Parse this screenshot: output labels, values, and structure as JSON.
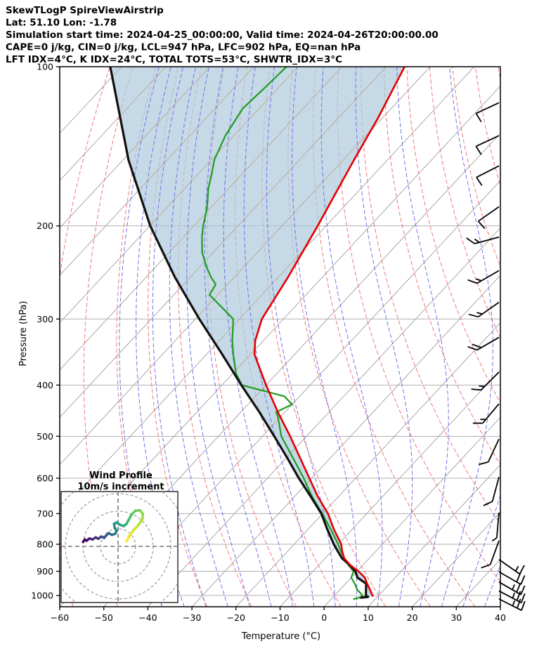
{
  "header": {
    "title": "SkewTLogP SpireViewAirstrip",
    "location_line": "Lat: 51.10   Lon: -1.78",
    "time_line": "Simulation start time: 2024-04-25_00:00:00, Valid time: 2024-04-26T20:00:00.00",
    "indices_line1": "CAPE=0 j/kg, CIN=0 j/kg, LCL=947 hPa, LFC=902 hPa, EQ=nan hPa",
    "indices_line2": "LFT IDX=4°C, K IDX=24°C, TOTAL TOTS=53°C, SHWTR_IDX=3°C"
  },
  "chart_data": {
    "type": "skewt-logp",
    "xlabel": "Temperature (°C)",
    "ylabel": "Pressure (hPa)",
    "xlim": [
      -60,
      40
    ],
    "x_ticks": [
      -60,
      -50,
      -40,
      -30,
      -20,
      -10,
      0,
      10,
      20,
      30,
      40
    ],
    "p_ticks": [
      100,
      200,
      300,
      400,
      500,
      600,
      700,
      800,
      900,
      1000
    ],
    "plim": [
      100,
      1050
    ],
    "grid": {
      "isotherm_step_c": 10,
      "isotherm_range_c": [
        -160,
        40
      ],
      "dry_adiabat_theta_c": [
        -60,
        150
      ],
      "dry_adiabat_step_c": 10,
      "moist_adiabat_thetaw_c": [
        -40,
        45
      ],
      "moist_adiabat_step_c": 5
    },
    "temperature_profile": [
      [
        1003,
        9.0
      ],
      [
        1000,
        8.6
      ],
      [
        975,
        6.8
      ],
      [
        950,
        4.9
      ],
      [
        925,
        3.1
      ],
      [
        900,
        0.3
      ],
      [
        875,
        -3.0
      ],
      [
        850,
        -5.7
      ],
      [
        825,
        -7.6
      ],
      [
        800,
        -9.3
      ],
      [
        750,
        -14.1
      ],
      [
        700,
        -18.8
      ],
      [
        650,
        -24.7
      ],
      [
        600,
        -30.5
      ],
      [
        550,
        -36.8
      ],
      [
        500,
        -43.7
      ],
      [
        450,
        -51.6
      ],
      [
        400,
        -60.0
      ],
      [
        350,
        -69.1
      ],
      [
        330,
        -71.8
      ],
      [
        300,
        -74.9
      ],
      [
        250,
        -77.8
      ],
      [
        200,
        -81.9
      ],
      [
        150,
        -87.6
      ],
      [
        125,
        -91.0
      ],
      [
        100,
        -95.8
      ]
    ],
    "dewpoint_profile": [
      [
        1016,
        5.0
      ],
      [
        1010,
        6.0
      ],
      [
        1000,
        6.4
      ],
      [
        975,
        3.9
      ],
      [
        950,
        2.1
      ],
      [
        925,
        0.0
      ],
      [
        900,
        -0.8
      ],
      [
        875,
        -3.4
      ],
      [
        850,
        -5.7
      ],
      [
        825,
        -7.9
      ],
      [
        800,
        -10.0
      ],
      [
        750,
        -14.8
      ],
      [
        700,
        -20.1
      ],
      [
        650,
        -26.0
      ],
      [
        600,
        -31.8
      ],
      [
        550,
        -38.4
      ],
      [
        500,
        -45.7
      ],
      [
        460,
        -50.5
      ],
      [
        450,
        -52.0
      ],
      [
        435,
        -50.0
      ],
      [
        420,
        -53.5
      ],
      [
        400,
        -65.5
      ],
      [
        380,
        -69.3
      ],
      [
        350,
        -73.9
      ],
      [
        330,
        -77.0
      ],
      [
        300,
        -81.4
      ],
      [
        285,
        -86.5
      ],
      [
        270,
        -91.9
      ],
      [
        258,
        -92.7
      ],
      [
        250,
        -95.3
      ],
      [
        240,
        -98.2
      ],
      [
        225,
        -102.4
      ],
      [
        210,
        -105.8
      ],
      [
        200,
        -107.9
      ],
      [
        185,
        -110.8
      ],
      [
        170,
        -114.6
      ],
      [
        160,
        -116.8
      ],
      [
        150,
        -119.3
      ],
      [
        135,
        -121.9
      ],
      [
        120,
        -123.7
      ],
      [
        110,
        -123.1
      ],
      [
        100,
        -122.6
      ]
    ],
    "parcel_profile": [
      [
        1010,
        6.3
      ],
      [
        1006,
        7.9
      ],
      [
        1000,
        7.1
      ],
      [
        975,
        5.9
      ],
      [
        950,
        4.7
      ],
      [
        925,
        1.4
      ],
      [
        900,
        -0.4
      ],
      [
        875,
        -3.1
      ],
      [
        850,
        -6.2
      ],
      [
        825,
        -8.6
      ],
      [
        800,
        -11.0
      ],
      [
        750,
        -15.6
      ],
      [
        700,
        -20.3
      ],
      [
        650,
        -26.3
      ],
      [
        600,
        -32.9
      ],
      [
        550,
        -39.7
      ],
      [
        500,
        -47.3
      ],
      [
        450,
        -55.8
      ],
      [
        400,
        -65.6
      ],
      [
        350,
        -76.4
      ],
      [
        300,
        -89.1
      ],
      [
        250,
        -103.5
      ],
      [
        200,
        -119.9
      ],
      [
        150,
        -138.8
      ],
      [
        100,
        -162.6
      ]
    ],
    "wind_barbs": [
      [
        117,
        205,
        10
      ],
      [
        135,
        205,
        10
      ],
      [
        154,
        207,
        10
      ],
      [
        184,
        215,
        10
      ],
      [
        210,
        195,
        15
      ],
      [
        243,
        210,
        15
      ],
      [
        279,
        215,
        15
      ],
      [
        325,
        210,
        20
      ],
      [
        378,
        225,
        15
      ],
      [
        434,
        230,
        15
      ],
      [
        506,
        245,
        10
      ],
      [
        597,
        255,
        10
      ],
      [
        697,
        265,
        5
      ],
      [
        788,
        250,
        10
      ],
      [
        855,
        325,
        15
      ],
      [
        902,
        330,
        20
      ],
      [
        943,
        330,
        25
      ],
      [
        980,
        332,
        25
      ],
      [
        1015,
        333,
        25
      ]
    ],
    "hodograph": {
      "title_line1": "Wind Profile",
      "title_line2": "10m/s increment",
      "ring_increment_ms": 10,
      "rings_ms": [
        10,
        20,
        30,
        40
      ],
      "trace_uv": [
        [
          4.8,
          2.9
        ],
        [
          6.4,
          5.9
        ],
        [
          8.8,
          9.2
        ],
        [
          11.7,
          12.3
        ],
        [
          13.9,
          15.5
        ],
        [
          14.1,
          18.5
        ],
        [
          12.5,
          20.5
        ],
        [
          9.9,
          20.3
        ],
        [
          7.7,
          18.1
        ],
        [
          6.1,
          15.2
        ],
        [
          4.8,
          12.8
        ],
        [
          3.2,
          11.5
        ],
        [
          1.1,
          12.3
        ],
        [
          -0.8,
          13.6
        ],
        [
          -2.3,
          12.8
        ],
        [
          -1.9,
          10.5
        ],
        [
          -0.8,
          8.8
        ],
        [
          -1.6,
          7.2
        ],
        [
          -3.5,
          6.5
        ],
        [
          -5.2,
          7.5
        ],
        [
          -6.5,
          6.5
        ],
        [
          -7.9,
          4.8
        ],
        [
          -9.6,
          5.6
        ],
        [
          -11.2,
          4.3
        ],
        [
          -12.8,
          5.1
        ],
        [
          -14.5,
          3.9
        ],
        [
          -16.3,
          4.5
        ],
        [
          -17.9,
          3.2
        ],
        [
          -18.9,
          3.9
        ],
        [
          -19.9,
          2.5
        ]
      ]
    },
    "colors": {
      "temperature": "#e50000",
      "dewpoint": "#1f9c1f",
      "parcel": "#111111",
      "shade": "#aecade",
      "isobar": "#b0b0b0",
      "isotherm": "#a8a8a8",
      "isotherm_in_shade": "#c2b09a",
      "dry_adiabat": "#f07878",
      "moist_adiabat": "#7474e8",
      "barb": "#000000"
    }
  }
}
